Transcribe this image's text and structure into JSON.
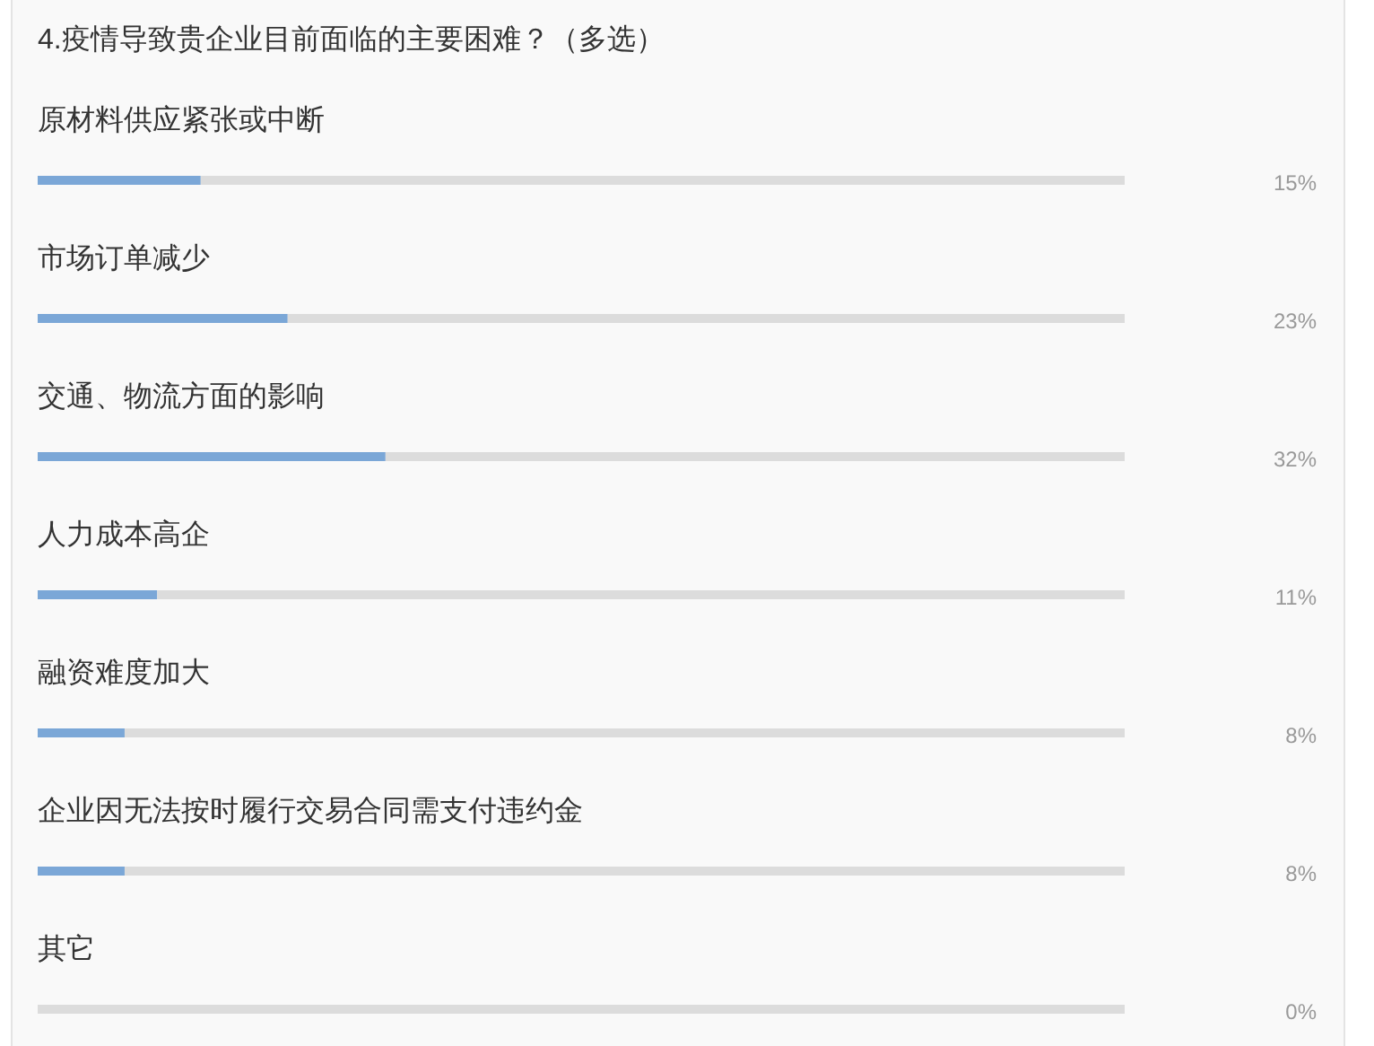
{
  "chart_data": {
    "type": "bar",
    "orientation": "horizontal",
    "stacked": true,
    "title": "4.疫情导致贵企业目前面临的主要困难？（多选）",
    "categories": [
      "原材料供应紧张或中断",
      "市场订单减少",
      "交通、物流方面的影响",
      "人力成本高企",
      "融资难度加大",
      "企业因无法按时履行交易合同需支付违约金",
      "其它"
    ],
    "series": [
      {
        "color": "#7ba7d7",
        "values": [
          15,
          23,
          32,
          11,
          8,
          8,
          0
        ],
        "value_labels": [
          "15%",
          "23%",
          "32%",
          "11%",
          "8%",
          "8%",
          "0%"
        ]
      },
      {
        "color": "#dcdcdc",
        "values": [
          85,
          77,
          68,
          89,
          92,
          92,
          100
        ]
      }
    ],
    "xlim": [
      0,
      100
    ],
    "tick_labels": "y"
  }
}
